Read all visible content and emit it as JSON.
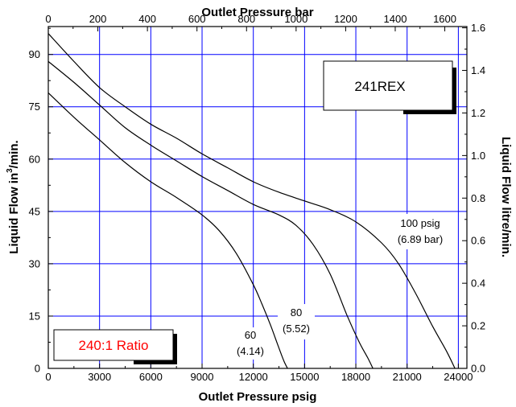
{
  "chart_data": {
    "type": "line",
    "title": "",
    "xlabel_bottom": "Outlet Pressure psig",
    "xlabel_top": "Outlet Pressure bar",
    "ylabel_left_prefix": "Liquid Flow in",
    "ylabel_left_sup": "3",
    "ylabel_left_suffix": "/min.",
    "ylabel_right": "Liquid Flow litre/min.",
    "xlim": [
      0,
      24500
    ],
    "ylim": [
      0,
      98
    ],
    "xlim_top": [
      0,
      1689.2
    ],
    "ylim_right": [
      0,
      1.606
    ],
    "grid": true,
    "grid_color": "#0000ff",
    "x_ticks": [
      {
        "value": 0,
        "label": "0"
      },
      {
        "value": 3000,
        "label": "3000"
      },
      {
        "value": 6000,
        "label": "6000"
      },
      {
        "value": 9000,
        "label": "9000"
      },
      {
        "value": 12000,
        "label": "12000"
      },
      {
        "value": 15000,
        "label": "15000"
      },
      {
        "value": 18000,
        "label": "18000"
      },
      {
        "value": 21000,
        "label": "21000"
      },
      {
        "value": 24000,
        "label": "24000"
      }
    ],
    "y_ticks": [
      {
        "value": 0,
        "label": "0"
      },
      {
        "value": 15,
        "label": "15"
      },
      {
        "value": 30,
        "label": "30"
      },
      {
        "value": 45,
        "label": "45"
      },
      {
        "value": 60,
        "label": "60"
      },
      {
        "value": 75,
        "label": "75"
      },
      {
        "value": 90,
        "label": "90"
      }
    ],
    "x_top_ticks": [
      {
        "value": 0,
        "label": "0"
      },
      {
        "value": 200,
        "label": "200"
      },
      {
        "value": 400,
        "label": "400"
      },
      {
        "value": 600,
        "label": "600"
      },
      {
        "value": 800,
        "label": "800"
      },
      {
        "value": 1000,
        "label": "1000"
      },
      {
        "value": 1200,
        "label": "1200"
      },
      {
        "value": 1400,
        "label": "1400"
      },
      {
        "value": 1600,
        "label": "1600"
      }
    ],
    "y_right_ticks": [
      {
        "value": 0.0,
        "label": "0.0"
      },
      {
        "value": 0.2,
        "label": "0.2"
      },
      {
        "value": 0.4,
        "label": "0.4"
      },
      {
        "value": 0.6,
        "label": "0.6"
      },
      {
        "value": 0.8,
        "label": "0.8"
      },
      {
        "value": 1.0,
        "label": "1.0"
      },
      {
        "value": 1.2,
        "label": "1.2"
      },
      {
        "value": 1.4,
        "label": "1.4"
      },
      {
        "value": 1.6,
        "label": "1.6"
      }
    ],
    "series": [
      {
        "name": "60 psig (4.14 bar)",
        "label_line1": "60",
        "label_line2": "(4.14)",
        "x": [
          0,
          1500,
          3000,
          4500,
          6000,
          7500,
          9000,
          10000,
          11000,
          12000,
          12500,
          13000,
          13300,
          13600,
          13800,
          14000
        ],
        "y": [
          79,
          72,
          65.5,
          59,
          53.5,
          49,
          44,
          39.5,
          33,
          24,
          18.5,
          12.5,
          8.5,
          4.5,
          2,
          0
        ]
      },
      {
        "name": "80 psig (5.52 bar)",
        "label_line1": "80",
        "label_line2": "(5.52)",
        "x": [
          0,
          1500,
          3000,
          4500,
          6000,
          7500,
          9000,
          10500,
          12000,
          13500,
          14500,
          15500,
          16500,
          17500,
          18200,
          18700,
          19000
        ],
        "y": [
          88,
          82,
          75.5,
          69,
          64,
          59.5,
          55,
          51,
          47,
          44,
          41,
          35.5,
          27,
          15,
          7.5,
          3,
          0
        ]
      },
      {
        "name": "100 psig (6.89 bar)",
        "label_line1": "100 psig",
        "label_line2": "(6.89 bar)",
        "x": [
          0,
          1500,
          3000,
          4500,
          6000,
          7500,
          9000,
          10500,
          12000,
          13500,
          15000,
          16500,
          18000,
          19500,
          20500,
          21500,
          22500,
          23300,
          23800
        ],
        "y": [
          96,
          88,
          80.5,
          75,
          70,
          66,
          61.5,
          57.5,
          53.5,
          50.5,
          48,
          45.5,
          42,
          36,
          30,
          21.5,
          12,
          5,
          0
        ]
      }
    ],
    "annotations": [
      {
        "text": "241REX",
        "color": "#000000"
      },
      {
        "text": "240:1 Ratio",
        "color": "#ff0000"
      }
    ]
  }
}
